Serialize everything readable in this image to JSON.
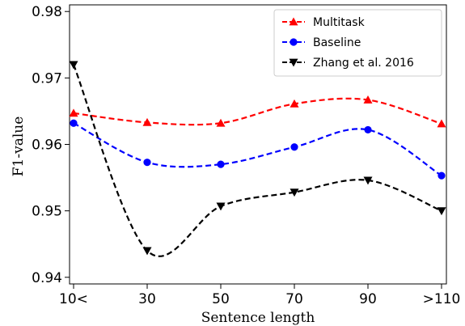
{
  "chart_data": {
    "type": "line",
    "categories": [
      "10<",
      "30",
      "50",
      "70",
      "90",
      ">110"
    ],
    "xlabel": "Sentence length",
    "ylabel": "F1-value",
    "ylim": [
      0.939,
      0.981
    ],
    "yticks": [
      0.94,
      0.95,
      0.96,
      0.97,
      0.98
    ],
    "ytick_labels": [
      "0.94",
      "0.95",
      "0.96",
      "0.97",
      "0.98"
    ],
    "grid": false,
    "legend_position": "top-right",
    "series": [
      {
        "name": "Multitask",
        "color": "#ff0000",
        "marker": "triangle-up",
        "values": [
          0.9647,
          0.9633,
          0.9632,
          0.9661,
          0.9667,
          0.9631
        ]
      },
      {
        "name": "Baseline",
        "color": "#0000ff",
        "marker": "circle",
        "values": [
          0.9632,
          0.9573,
          0.957,
          0.9596,
          0.9622,
          0.9553
        ]
      },
      {
        "name": "Zhang et al. 2016",
        "color": "#000000",
        "marker": "triangle-down",
        "values": [
          0.972,
          0.944,
          0.9507,
          0.9528,
          0.9546,
          0.95
        ]
      }
    ]
  }
}
